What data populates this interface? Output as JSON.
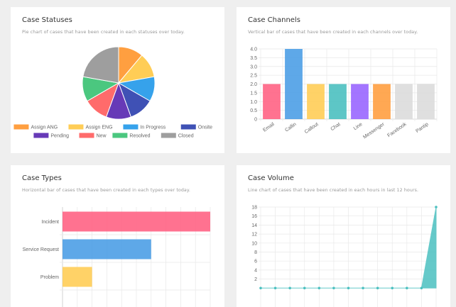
{
  "chart_data": [
    {
      "type": "pie",
      "title": "Case Statuses",
      "subtitle": "Pie chart of cases that have been created in each statuses over today.",
      "categories": [
        "Assign ANG",
        "Assign ENG",
        "In Progress",
        "Onsite",
        "Pending",
        "New",
        "Resolved",
        "Closed"
      ],
      "values": [
        1,
        1,
        1,
        1,
        1,
        1,
        1,
        2
      ],
      "colors": [
        "#ff9f40",
        "#ffcd56",
        "#36a2eb",
        "#3f51b5",
        "#673ab7",
        "#ff6b6b",
        "#4bc77f",
        "#9e9e9e"
      ],
      "legend": "bottom"
    },
    {
      "type": "bar",
      "title": "Case Channels",
      "subtitle": "Vertical bar of cases that have been created in each channels over today.",
      "categories": [
        "Email",
        "Callin",
        "Callout",
        "Chat",
        "Line",
        "Messenger",
        "Facebook",
        "Pantip"
      ],
      "values": [
        2,
        4,
        2,
        2,
        2,
        2,
        2,
        2
      ],
      "colors": [
        "#ff6384",
        "#4c9fe6",
        "#ffcd56",
        "#4bc0c0",
        "#9966ff",
        "#ff9f40",
        "#dcdcdc",
        "#dcdcdc"
      ],
      "ylim": [
        0,
        4
      ],
      "yticks": [
        "0",
        "0.5",
        "1.0",
        "1.5",
        "2.0",
        "2.5",
        "3.0",
        "3.5",
        "4.0"
      ],
      "grid": true
    },
    {
      "type": "bar",
      "orientation": "horizontal",
      "title": "Case Types",
      "subtitle": "Horizontal bar of cases that have been created in each types over today.",
      "categories": [
        "Incident",
        "Service Request",
        "Problem"
      ],
      "values": [
        10,
        6,
        2
      ],
      "colors": [
        "#ff6384",
        "#4c9fe6",
        "#ffcd56"
      ],
      "xlim": [
        0,
        10
      ],
      "grid": true
    },
    {
      "type": "area",
      "title": "Case Volume",
      "subtitle": "Line chart of cases that have been created in each hours in last 12 hours.",
      "values": [
        0,
        0,
        0,
        0,
        0,
        0,
        0,
        0,
        0,
        0,
        0,
        0,
        18
      ],
      "color": "#4bc0c0",
      "ylim": [
        0,
        18
      ],
      "yticks": [
        "2",
        "4",
        "6",
        "8",
        "10",
        "12",
        "14",
        "16",
        "18"
      ],
      "grid": true
    }
  ]
}
